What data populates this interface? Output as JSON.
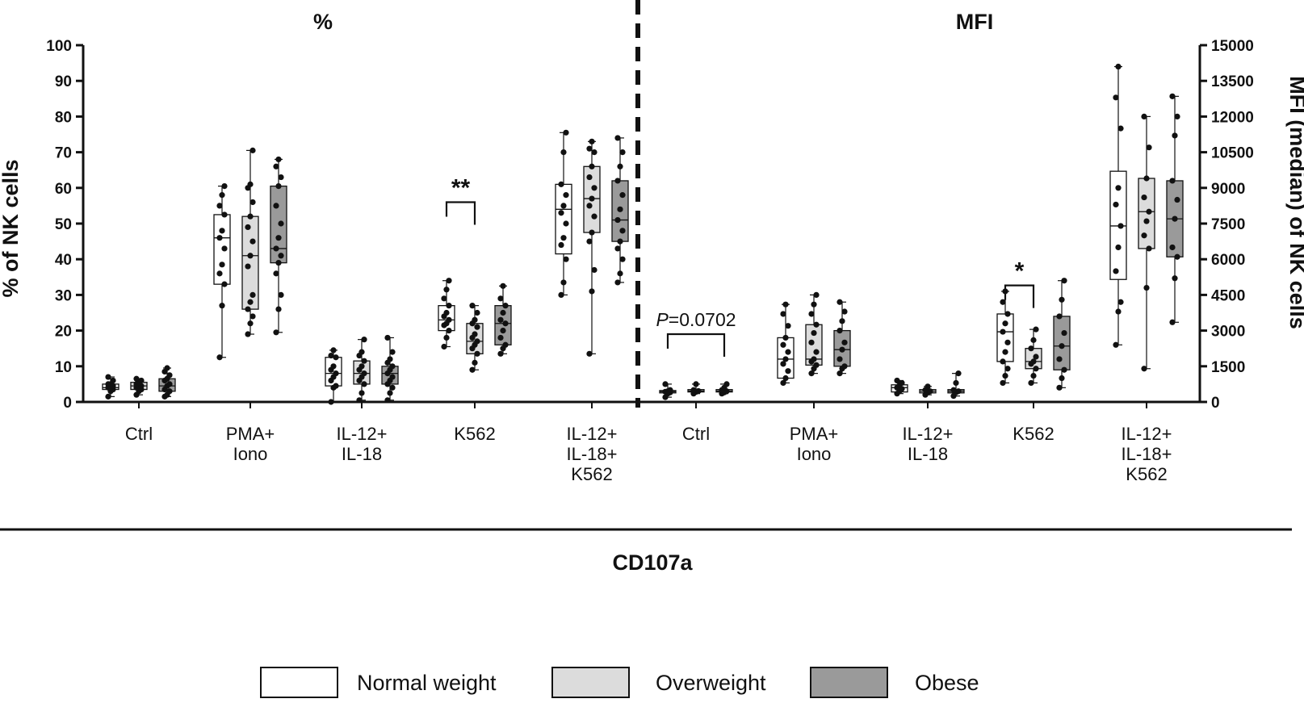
{
  "chart_data": [
    {
      "type": "box",
      "title": "%",
      "ylabel": "% of NK cells",
      "ylim": [
        0,
        100
      ],
      "yticks": [
        0,
        10,
        20,
        30,
        40,
        50,
        60,
        70,
        80,
        90,
        100
      ],
      "yticks_text": [
        "0",
        "10",
        "20",
        "30",
        "40",
        "50",
        "60",
        "70",
        "80",
        "90",
        "100"
      ],
      "categories": [
        "Ctrl",
        "PMA+\nIono",
        "IL-12+\nIL-18",
        "K562",
        "IL-12+\nIL-18+\nK562"
      ],
      "series": [
        {
          "name": "Normal weight",
          "boxes": [
            {
              "min": 1.5,
              "q1": 3.5,
              "median": 4,
              "q3": 5,
              "max": 7,
              "points": [
                1.5,
                3,
                3.5,
                4,
                4,
                4.5,
                5,
                5,
                6,
                7
              ]
            },
            {
              "min": 12.5,
              "q1": 33,
              "median": 46,
              "q3": 52.5,
              "max": 60.5,
              "points": [
                12.5,
                27,
                33,
                36,
                38.5,
                43,
                46,
                48,
                52.5,
                55,
                58,
                60.5
              ]
            },
            {
              "min": 0,
              "q1": 4.5,
              "median": 8,
              "q3": 12.5,
              "max": 14.5,
              "points": [
                0,
                4,
                4.5,
                6,
                7,
                8,
                9,
                10,
                12.5,
                13,
                14.5
              ]
            },
            {
              "min": 15.5,
              "q1": 20,
              "median": 23,
              "q3": 27,
              "max": 34,
              "points": [
                15.5,
                18,
                20,
                21.5,
                22,
                23,
                24,
                25,
                27,
                29,
                31.5,
                34
              ]
            },
            {
              "min": 30,
              "q1": 41.5,
              "median": 54,
              "q3": 61,
              "max": 75.5,
              "points": [
                30,
                33.5,
                40,
                44,
                46,
                50,
                53,
                55,
                58,
                61,
                70,
                75.5
              ]
            }
          ]
        },
        {
          "name": "Overweight",
          "boxes": [
            {
              "min": 2,
              "q1": 3.5,
              "median": 4.5,
              "q3": 5.5,
              "max": 6.5,
              "points": [
                2,
                3,
                3.5,
                4,
                4.5,
                4.5,
                5,
                5.5,
                6,
                6.5
              ]
            },
            {
              "min": 19,
              "q1": 26,
              "median": 41,
              "q3": 52,
              "max": 70.5,
              "points": [
                19,
                22,
                24,
                26,
                28,
                30,
                38,
                41,
                45,
                49,
                52,
                56,
                60,
                61,
                70.5
              ]
            },
            {
              "min": 0.5,
              "q1": 5,
              "median": 8,
              "q3": 11.5,
              "max": 17.5,
              "points": [
                0.5,
                2.5,
                5,
                6,
                7,
                8,
                9,
                10,
                11.5,
                13,
                14,
                17.5
              ]
            },
            {
              "min": 9,
              "q1": 13.5,
              "median": 17,
              "q3": 22,
              "max": 27,
              "points": [
                9,
                11,
                13.5,
                15,
                16,
                17,
                18,
                19,
                21,
                22,
                23,
                25,
                27
              ]
            },
            {
              "min": 13.5,
              "q1": 47.5,
              "median": 57,
              "q3": 66,
              "max": 73,
              "points": [
                13.5,
                31,
                37,
                45,
                47.5,
                52,
                55,
                57,
                60,
                63,
                66,
                70,
                71,
                73
              ]
            }
          ]
        },
        {
          "name": "Obese",
          "boxes": [
            {
              "min": 1.5,
              "q1": 3,
              "median": 4.5,
              "q3": 6.5,
              "max": 9.5,
              "points": [
                1.5,
                2,
                3,
                3.5,
                4.5,
                5,
                6,
                6.5,
                7.5,
                8.5,
                9.5
              ]
            },
            {
              "min": 19.5,
              "q1": 39,
              "median": 43,
              "q3": 60.5,
              "max": 68,
              "points": [
                19.5,
                26,
                30,
                36,
                39,
                41,
                43,
                46,
                50,
                55,
                60.5,
                63,
                66,
                68
              ]
            },
            {
              "min": 0.5,
              "q1": 5,
              "median": 8,
              "q3": 10,
              "max": 18,
              "points": [
                0.5,
                2.5,
                4,
                5,
                6,
                7,
                8,
                9,
                10,
                11,
                12,
                14,
                18
              ]
            },
            {
              "min": 13.5,
              "q1": 16,
              "median": 22,
              "q3": 27,
              "max": 32.5,
              "points": [
                13.5,
                15,
                16,
                18,
                20,
                22,
                23,
                25,
                27,
                29,
                32.5
              ]
            },
            {
              "min": 33.5,
              "q1": 45,
              "median": 51,
              "q3": 62,
              "max": 74,
              "points": [
                33.5,
                36,
                40,
                43,
                45,
                48,
                51,
                54,
                58,
                62,
                66,
                70,
                74
              ]
            }
          ]
        }
      ],
      "annotations": [
        {
          "text": "**",
          "category_index": 3,
          "between": [
            "Normal weight",
            "Overweight"
          ],
          "y": 56
        }
      ]
    },
    {
      "type": "box",
      "title": "MFI",
      "ylabel": "MFI (median) of NK cells",
      "ylim": [
        0,
        15000
      ],
      "yticks": [
        0,
        1500,
        3000,
        4500,
        6000,
        7500,
        9000,
        10500,
        12000,
        13500,
        15000
      ],
      "yticks_text": [
        "0",
        "1500",
        "3000",
        "4500",
        "6000",
        "7500",
        "9000",
        "10500",
        "12000",
        "13500",
        "15000"
      ],
      "categories": [
        "Ctrl",
        "PMA+\nIono",
        "IL-12+\nIL-18",
        "K562",
        "IL-12+\nIL-18+\nK562"
      ],
      "series": [
        {
          "name": "Normal weight",
          "boxes": [
            {
              "min": 200,
              "q1": 380,
              "median": 430,
              "q3": 480,
              "max": 750,
              "points": [
                200,
                350,
                400,
                430,
                450,
                500,
                750
              ]
            },
            {
              "min": 800,
              "q1": 1000,
              "median": 1800,
              "q3": 2700,
              "max": 4100,
              "points": [
                800,
                1000,
                1300,
                1600,
                1800,
                2100,
                2400,
                2700,
                3200,
                3700,
                4100
              ]
            },
            {
              "min": 350,
              "q1": 420,
              "median": 600,
              "q3": 720,
              "max": 900,
              "points": [
                350,
                450,
                550,
                600,
                700,
                800,
                900
              ]
            },
            {
              "min": 800,
              "q1": 1700,
              "median": 2950,
              "q3": 3700,
              "max": 4650,
              "points": [
                800,
                1100,
                1400,
                1700,
                2100,
                2500,
                2950,
                3300,
                3700,
                4200,
                4650
              ]
            },
            {
              "min": 2400,
              "q1": 5150,
              "median": 7400,
              "q3": 9700,
              "max": 14100,
              "points": [
                2400,
                3800,
                4200,
                5500,
                6500,
                7400,
                8300,
                9000,
                11500,
                12800,
                14100
              ]
            }
          ]
        },
        {
          "name": "Overweight",
          "boxes": [
            {
              "min": 350,
              "q1": 420,
              "median": 460,
              "q3": 520,
              "max": 750,
              "points": [
                350,
                420,
                460,
                500,
                750
              ]
            },
            {
              "min": 1200,
              "q1": 1550,
              "median": 1800,
              "q3": 3250,
              "max": 4500,
              "points": [
                1200,
                1400,
                1550,
                1700,
                1800,
                2100,
                2500,
                2900,
                3250,
                3700,
                4100,
                4500
              ]
            },
            {
              "min": 300,
              "q1": 380,
              "median": 450,
              "q3": 520,
              "max": 650,
              "points": [
                300,
                400,
                450,
                500,
                650
              ]
            },
            {
              "min": 800,
              "q1": 1400,
              "median": 1700,
              "q3": 2250,
              "max": 3050,
              "points": [
                800,
                1100,
                1400,
                1600,
                1700,
                1900,
                2250,
                2600,
                3050
              ]
            },
            {
              "min": 1400,
              "q1": 6450,
              "median": 8000,
              "q3": 9400,
              "max": 12000,
              "points": [
                1400,
                4800,
                6450,
                7000,
                7600,
                8000,
                8600,
                9400,
                10700,
                12000
              ]
            }
          ]
        },
        {
          "name": "Obese",
          "boxes": [
            {
              "min": 350,
              "q1": 420,
              "median": 450,
              "q3": 520,
              "max": 750,
              "points": [
                350,
                400,
                450,
                500,
                600,
                750
              ]
            },
            {
              "min": 1200,
              "q1": 1500,
              "median": 2200,
              "q3": 3000,
              "max": 4200,
              "points": [
                1200,
                1400,
                1500,
                1800,
                2200,
                2500,
                3000,
                3400,
                3800,
                4200
              ]
            },
            {
              "min": 250,
              "q1": 380,
              "median": 450,
              "q3": 520,
              "max": 1200,
              "points": [
                250,
                400,
                450,
                500,
                800,
                1200
              ]
            },
            {
              "min": 600,
              "q1": 1350,
              "median": 2350,
              "q3": 3600,
              "max": 5100,
              "points": [
                600,
                1000,
                1350,
                1800,
                2350,
                2900,
                3600,
                4300,
                5100
              ]
            },
            {
              "min": 3350,
              "q1": 6100,
              "median": 7700,
              "q3": 9300,
              "max": 12850,
              "points": [
                3350,
                5200,
                6100,
                6500,
                7700,
                8500,
                9300,
                11200,
                12000,
                12850
              ]
            }
          ]
        }
      ],
      "annotations": [
        {
          "text": "*",
          "category_index": 3,
          "between": [
            "Normal weight",
            "Overweight"
          ],
          "y": 4900
        },
        {
          "text": "P=0.0702",
          "category_index": 0,
          "between": [
            "Normal weight",
            "Obese"
          ],
          "y": 2850
        }
      ]
    }
  ],
  "shared_xlabel": "CD107a",
  "legend": [
    {
      "label": "Normal weight",
      "color": "#ffffff"
    },
    {
      "label": "Overweight",
      "color": "#dcdcdc"
    },
    {
      "label": "Obese",
      "color": "#9a9a9a"
    }
  ]
}
